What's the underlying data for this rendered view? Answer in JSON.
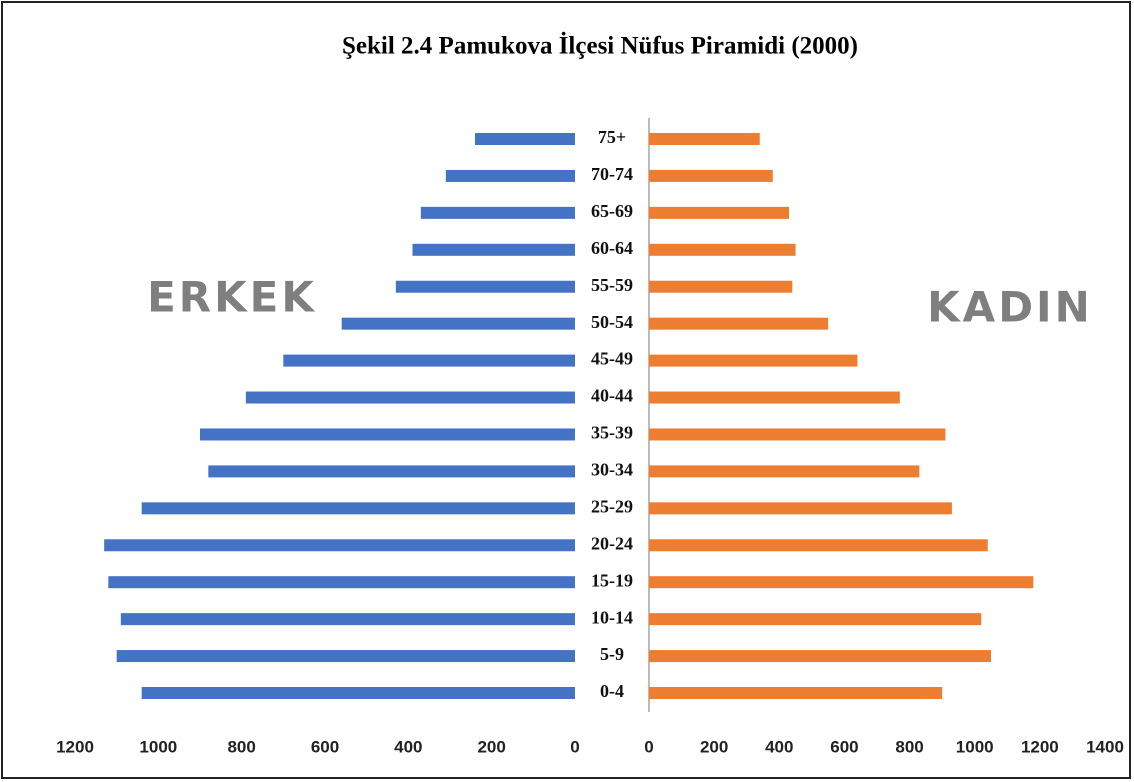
{
  "chart_data": {
    "type": "pyramid",
    "title": "Şekil 2.4 Pamukova İlçesi Nüfus Piramidi (2000)",
    "categories": [
      "0-4",
      "5-9",
      "10-14",
      "15-19",
      "20-24",
      "25-29",
      "30-34",
      "35-39",
      "40-44",
      "45-49",
      "50-54",
      "55-59",
      "60-64",
      "65-69",
      "70-74",
      "75+"
    ],
    "series": [
      {
        "name": "ERKEK",
        "color": "#4472c4",
        "side": "left",
        "values": [
          1040,
          1100,
          1090,
          1120,
          1130,
          1040,
          880,
          900,
          790,
          700,
          560,
          430,
          390,
          370,
          310,
          240
        ],
        "xlim": [
          0,
          1200
        ],
        "xticks": [
          0,
          200,
          400,
          600,
          800,
          1000,
          1200
        ]
      },
      {
        "name": "KADIN",
        "color": "#ed7d31",
        "side": "right",
        "values": [
          900,
          1050,
          1020,
          1180,
          1040,
          930,
          830,
          910,
          770,
          640,
          550,
          440,
          450,
          430,
          380,
          340
        ],
        "xlim": [
          0,
          1400
        ],
        "xticks": [
          0,
          200,
          400,
          600,
          800,
          1000,
          1200,
          1400
        ]
      }
    ]
  }
}
